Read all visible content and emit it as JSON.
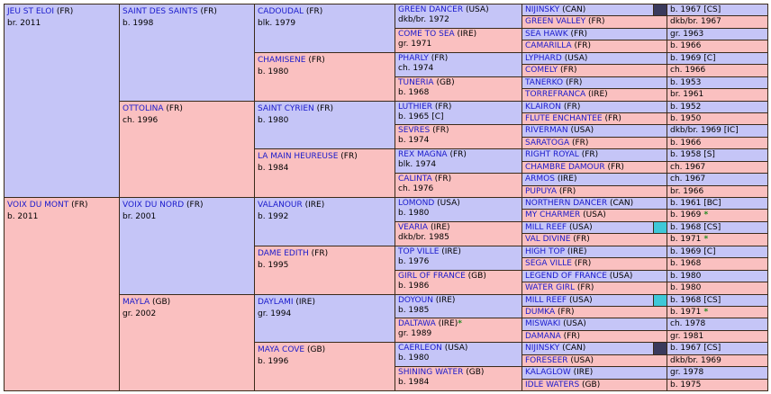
{
  "gen1": [
    {
      "name": "JEU ST ELOI",
      "suffix": " (FR)",
      "info": "br. 2011"
    },
    {
      "name": "VOIX DU MONT",
      "suffix": " (FR)",
      "info": "b. 2011"
    }
  ],
  "gen2": [
    {
      "name": "SAINT DES SAINTS",
      "suffix": " (FR)",
      "info": "b. 1998"
    },
    {
      "name": "OTTOLINA",
      "suffix": " (FR)",
      "info": "ch. 1996"
    },
    {
      "name": "VOIX DU NORD",
      "suffix": " (FR)",
      "info": "br. 2001"
    },
    {
      "name": "MAYLA",
      "suffix": " (GB)",
      "info": "gr. 2002"
    }
  ],
  "gen3": [
    {
      "name": "CADOUDAL",
      "suffix": " (FR)",
      "info": "blk. 1979"
    },
    {
      "name": "CHAMISENE",
      "suffix": " (FR)",
      "info": "b. 1980"
    },
    {
      "name": "SAINT CYRIEN",
      "suffix": " (FR)",
      "info": "b. 1980"
    },
    {
      "name": "LA MAIN HEUREUSE",
      "suffix": " (FR)",
      "info": "b. 1984"
    },
    {
      "name": "VALANOUR",
      "suffix": " (IRE)",
      "info": "b. 1992"
    },
    {
      "name": "DAME EDITH",
      "suffix": " (FR)",
      "info": "b. 1995"
    },
    {
      "name": "DAYLAMI",
      "suffix": " (IRE)",
      "info": "gr. 1994"
    },
    {
      "name": "MAYA COVE",
      "suffix": " (GB)",
      "info": "b. 1996"
    }
  ],
  "gen4": [
    {
      "name": "GREEN DANCER",
      "suffix": " (USA)",
      "info": "dkb/br. 1972",
      "star": ""
    },
    {
      "name": "COME TO SEA",
      "suffix": " (IRE)",
      "info": "gr. 1971",
      "star": ""
    },
    {
      "name": "PHARLY",
      "suffix": " (FR)",
      "info": "ch. 1974",
      "star": ""
    },
    {
      "name": "TUNERIA",
      "suffix": " (GB)",
      "info": "b. 1968",
      "star": ""
    },
    {
      "name": "LUTHIER",
      "suffix": " (FR)",
      "info": "b. 1965 [C]",
      "star": ""
    },
    {
      "name": "SEVRES",
      "suffix": " (FR)",
      "info": "b. 1974",
      "star": ""
    },
    {
      "name": "REX MAGNA",
      "suffix": " (FR)",
      "info": "blk. 1974",
      "star": ""
    },
    {
      "name": "CALINTA",
      "suffix": " (FR)",
      "info": "ch. 1976",
      "star": ""
    },
    {
      "name": "LOMOND",
      "suffix": " (USA)",
      "info": "b. 1980",
      "star": ""
    },
    {
      "name": "VEARIA",
      "suffix": " (IRE)",
      "info": "dkb/br. 1985",
      "star": ""
    },
    {
      "name": "TOP VILLE",
      "suffix": " (IRE)",
      "info": "b. 1976",
      "star": ""
    },
    {
      "name": "GIRL OF FRANCE",
      "suffix": " (GB)",
      "info": "b. 1986",
      "star": ""
    },
    {
      "name": "DOYOUN",
      "suffix": " (IRE)",
      "info": "b. 1985",
      "star": ""
    },
    {
      "name": "DALTAWA",
      "suffix": " (IRE)",
      "info": "gr. 1989",
      "star": "*"
    },
    {
      "name": "CAERLEON",
      "suffix": " (USA)",
      "info": "b. 1980",
      "star": ""
    },
    {
      "name": "SHINING WATER",
      "suffix": " (GB)",
      "info": "b. 1984",
      "star": ""
    }
  ],
  "gen5": [
    {
      "name": "NIJINSKY",
      "suffix": " (CAN)",
      "info": "b. 1967 [CS]",
      "star": "",
      "swatch": "#3a3a5c"
    },
    {
      "name": "GREEN VALLEY",
      "suffix": " (FR)",
      "info": "dkb/br. 1967",
      "star": "",
      "swatch": ""
    },
    {
      "name": "SEA HAWK",
      "suffix": " (FR)",
      "info": "gr. 1963",
      "star": "",
      "swatch": ""
    },
    {
      "name": "CAMARILLA",
      "suffix": " (FR)",
      "info": "b. 1966",
      "star": "",
      "swatch": ""
    },
    {
      "name": "LYPHARD",
      "suffix": " (USA)",
      "info": "b. 1969 [C]",
      "star": "",
      "swatch": ""
    },
    {
      "name": "COMELY",
      "suffix": " (FR)",
      "info": "ch. 1966",
      "star": "",
      "swatch": ""
    },
    {
      "name": "TANERKO",
      "suffix": " (FR)",
      "info": "b. 1953",
      "star": "",
      "swatch": ""
    },
    {
      "name": "TORREFRANCA",
      "suffix": " (IRE)",
      "info": "br. 1961",
      "star": "",
      "swatch": ""
    },
    {
      "name": "KLAIRON",
      "suffix": " (FR)",
      "info": "b. 1952",
      "star": "",
      "swatch": ""
    },
    {
      "name": "FLUTE ENCHANTEE",
      "suffix": " (FR)",
      "info": "b. 1950",
      "star": "",
      "swatch": ""
    },
    {
      "name": "RIVERMAN",
      "suffix": " (USA)",
      "info": "dkb/br. 1969 [IC]",
      "star": "",
      "swatch": ""
    },
    {
      "name": "SARATOGA",
      "suffix": " (FR)",
      "info": "b. 1966",
      "star": "",
      "swatch": ""
    },
    {
      "name": "RIGHT ROYAL",
      "suffix": " (FR)",
      "info": "b. 1958 [S]",
      "star": "",
      "swatch": ""
    },
    {
      "name": "CHAMBRE DAMOUR",
      "suffix": " (FR)",
      "info": "ch. 1967",
      "star": "",
      "swatch": ""
    },
    {
      "name": "ARMOS",
      "suffix": " (IRE)",
      "info": "ch. 1967",
      "star": "",
      "swatch": ""
    },
    {
      "name": "PUPUYA",
      "suffix": " (FR)",
      "info": "br. 1966",
      "star": "",
      "swatch": ""
    },
    {
      "name": "NORTHERN DANCER",
      "suffix": " (CAN)",
      "info": "b. 1961 [BC]",
      "star": "",
      "swatch": ""
    },
    {
      "name": "MY CHARMER",
      "suffix": " (USA)",
      "info": "b. 1969",
      "star": "*",
      "swatch": ""
    },
    {
      "name": "MILL REEF",
      "suffix": " (USA)",
      "info": "b. 1968 [CS]",
      "star": "",
      "swatch": "#3ec8d8"
    },
    {
      "name": "VAL DIVINE",
      "suffix": " (FR)",
      "info": "b. 1971",
      "star": "*",
      "swatch": ""
    },
    {
      "name": "HIGH TOP",
      "suffix": " (IRE)",
      "info": "b. 1969 [C]",
      "star": "",
      "swatch": ""
    },
    {
      "name": "SEGA VILLE",
      "suffix": " (FR)",
      "info": "b. 1968",
      "star": "",
      "swatch": ""
    },
    {
      "name": "LEGEND OF FRANCE",
      "suffix": " (USA)",
      "info": "b. 1980",
      "star": "",
      "swatch": ""
    },
    {
      "name": "WATER GIRL",
      "suffix": " (FR)",
      "info": "b. 1980",
      "star": "",
      "swatch": ""
    },
    {
      "name": "MILL REEF",
      "suffix": " (USA)",
      "info": "b. 1968 [CS]",
      "star": "",
      "swatch": "#3ec8d8"
    },
    {
      "name": "DUMKA",
      "suffix": " (FR)",
      "info": "b. 1971",
      "star": "*",
      "swatch": ""
    },
    {
      "name": "MISWAKI",
      "suffix": " (USA)",
      "info": "ch. 1978",
      "star": "",
      "swatch": ""
    },
    {
      "name": "DAMANA",
      "suffix": " (FR)",
      "info": "gr. 1981",
      "star": "",
      "swatch": ""
    },
    {
      "name": "NIJINSKY",
      "suffix": " (CAN)",
      "info": "b. 1967 [CS]",
      "star": "",
      "swatch": "#3a3a5c"
    },
    {
      "name": "FORESEER",
      "suffix": " (USA)",
      "info": "dkb/br. 1969",
      "star": "",
      "swatch": ""
    },
    {
      "name": "KALAGLOW",
      "suffix": " (IRE)",
      "info": "gr. 1978",
      "star": "",
      "swatch": ""
    },
    {
      "name": "IDLE WATERS",
      "suffix": " (GB)",
      "info": "b. 1975",
      "star": "",
      "swatch": ""
    }
  ],
  "colors": {
    "sire": "#c5c5f7",
    "dam": "#fac0c0",
    "link": "#1a1acc",
    "star": "#1f8a1f"
  }
}
